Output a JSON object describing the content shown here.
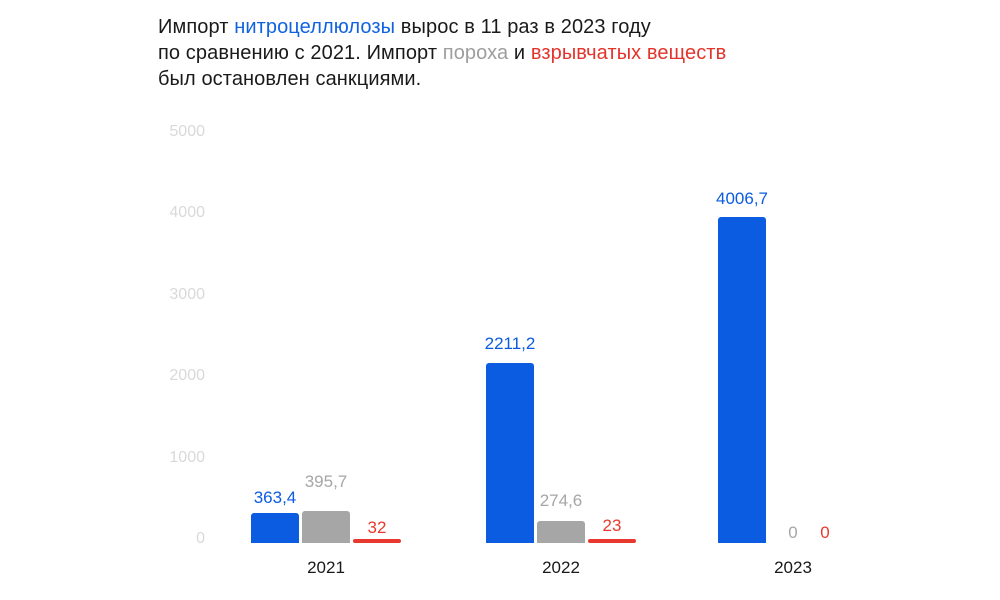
{
  "title": {
    "segments": [
      {
        "text": "Импорт ",
        "color": "#1a1a1a"
      },
      {
        "text": "нитроцеллюлозы",
        "color": "#1063e0"
      },
      {
        "text": " вырос в 11 раз в 2023 году\nпо сравнению с 2021. Импорт ",
        "color": "#1a1a1a"
      },
      {
        "text": "пороха",
        "color": "#9e9e9e"
      },
      {
        "text": " и ",
        "color": "#1a1a1a"
      },
      {
        "text": "взрывчатых веществ",
        "color": "#e3342c"
      },
      {
        "text": "\nбыл остановлен санкциями.",
        "color": "#1a1a1a"
      }
    ]
  },
  "chart_data": {
    "type": "bar",
    "title": "Импорт нитроцеллюлозы вырос в 11 раз в 2023 году по сравнению с 2021. Импорт пороха и взрывчатых веществ был остановлен санкциями.",
    "categories": [
      "2021",
      "2022",
      "2023"
    ],
    "series": [
      {
        "name": "нитроцеллюлоза",
        "color": "#0b5ce0",
        "values": [
          363.4,
          2211.2,
          4006.7
        ],
        "labels": [
          "363,4",
          "2211,2",
          "4006,7"
        ]
      },
      {
        "name": "порох",
        "color": "#a6a6a6",
        "values": [
          395.7,
          274.6,
          0
        ],
        "labels": [
          "395,7",
          "274,6",
          "0"
        ]
      },
      {
        "name": "взрывчатые вещества",
        "color": "#e8392e",
        "values": [
          32,
          23,
          0
        ],
        "labels": [
          "32",
          "23",
          "0"
        ]
      }
    ],
    "y_ticks": [
      0,
      1000,
      2000,
      3000,
      4000,
      5000
    ],
    "ylim": [
      0,
      5000
    ],
    "xlabel": "",
    "ylabel": "",
    "grid": false,
    "legend_position": "none",
    "tick_label_color": "#d9d9d9",
    "x_label_color": "#191919"
  }
}
